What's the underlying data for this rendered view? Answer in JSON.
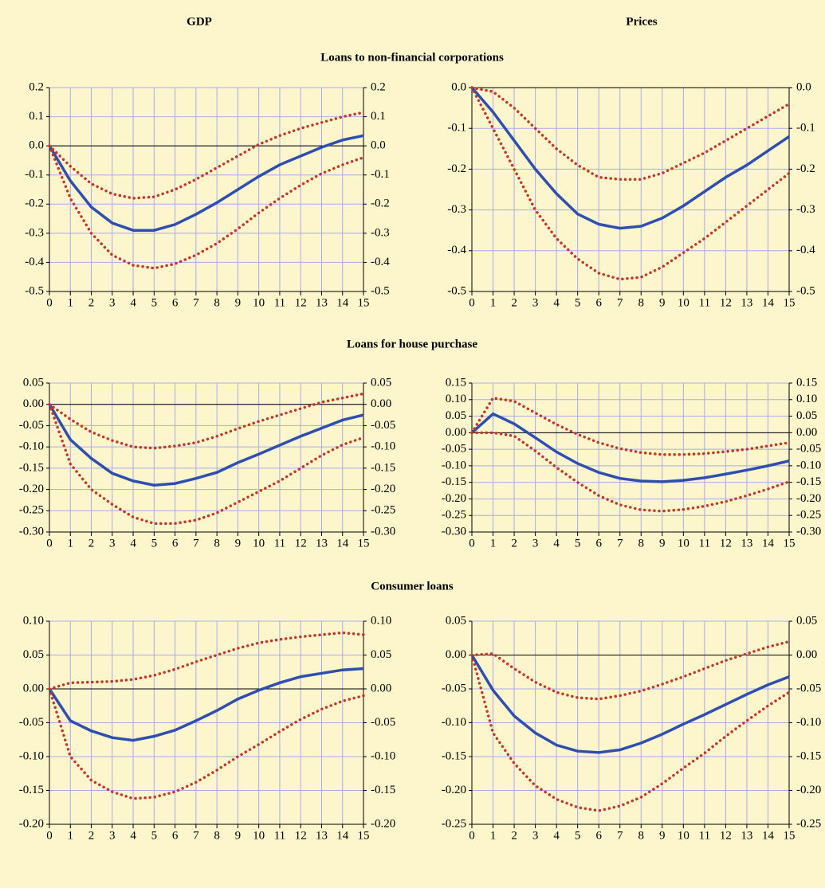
{
  "column_titles": [
    "GDP",
    "Prices"
  ],
  "row_titles": [
    "Loans to non-financial corporations",
    "Loans for house purchase",
    "Consumer loans"
  ],
  "chart_data": [
    {
      "type": "line",
      "x": [
        0,
        1,
        2,
        3,
        4,
        5,
        6,
        7,
        8,
        9,
        10,
        11,
        12,
        13,
        14,
        15
      ],
      "xlim": [
        0,
        15
      ],
      "xticks": [
        0,
        1,
        2,
        3,
        4,
        5,
        6,
        7,
        8,
        9,
        10,
        11,
        12,
        13,
        14,
        15
      ],
      "ylim": [
        -0.5,
        0.2
      ],
      "yticks": [
        -0.5,
        -0.4,
        -0.3,
        -0.2,
        -0.1,
        {
          "value": 0,
          "label": "0.0"
        },
        0.1,
        0.2
      ],
      "grid": true,
      "series": [
        {
          "color": "#2e4fb0",
          "style": "solid",
          "values": [
            0,
            -0.12,
            -0.21,
            -0.265,
            -0.29,
            -0.29,
            -0.27,
            -0.235,
            -0.195,
            -0.15,
            -0.105,
            -0.065,
            -0.035,
            -0.005,
            0.02,
            0.035
          ]
        },
        {
          "color": "#c0392b",
          "style": "dotted",
          "values": [
            0,
            -0.07,
            -0.13,
            -0.165,
            -0.18,
            -0.175,
            -0.15,
            -0.115,
            -0.075,
            -0.035,
            0.005,
            0.035,
            0.06,
            0.08,
            0.1,
            0.115
          ]
        },
        {
          "color": "#c0392b",
          "style": "dotted",
          "values": [
            0,
            -0.18,
            -0.3,
            -0.375,
            -0.41,
            -0.42,
            -0.405,
            -0.375,
            -0.335,
            -0.285,
            -0.23,
            -0.18,
            -0.135,
            -0.095,
            -0.065,
            -0.04
          ]
        }
      ]
    },
    {
      "type": "line",
      "x": [
        0,
        1,
        2,
        3,
        4,
        5,
        6,
        7,
        8,
        9,
        10,
        11,
        12,
        13,
        14,
        15
      ],
      "xlim": [
        0,
        15
      ],
      "xticks": [
        0,
        1,
        2,
        3,
        4,
        5,
        6,
        7,
        8,
        9,
        10,
        11,
        12,
        13,
        14,
        15
      ],
      "ylim": [
        -0.5,
        0
      ],
      "yticks": [
        -0.5,
        -0.4,
        -0.3,
        -0.2,
        -0.1,
        {
          "value": 0,
          "label": "0.0"
        }
      ],
      "grid": true,
      "series": [
        {
          "color": "#2e4fb0",
          "style": "solid",
          "values": [
            0,
            -0.06,
            -0.13,
            -0.2,
            -0.26,
            -0.31,
            -0.335,
            -0.345,
            -0.34,
            -0.32,
            -0.29,
            -0.255,
            -0.22,
            -0.19,
            -0.155,
            -0.12
          ]
        },
        {
          "color": "#c0392b",
          "style": "dotted",
          "values": [
            0,
            -0.01,
            -0.05,
            -0.1,
            -0.15,
            -0.19,
            -0.22,
            -0.225,
            -0.225,
            -0.21,
            -0.185,
            -0.16,
            -0.13,
            -0.1,
            -0.07,
            -0.04
          ]
        },
        {
          "color": "#c0392b",
          "style": "dotted",
          "values": [
            0,
            -0.1,
            -0.2,
            -0.3,
            -0.37,
            -0.42,
            -0.455,
            -0.47,
            -0.465,
            -0.44,
            -0.405,
            -0.37,
            -0.33,
            -0.29,
            -0.25,
            -0.21
          ]
        }
      ]
    },
    {
      "type": "line",
      "x": [
        0,
        1,
        2,
        3,
        4,
        5,
        6,
        7,
        8,
        9,
        10,
        11,
        12,
        13,
        14,
        15
      ],
      "xlim": [
        0,
        15
      ],
      "xticks": [
        0,
        1,
        2,
        3,
        4,
        5,
        6,
        7,
        8,
        9,
        10,
        11,
        12,
        13,
        14,
        15
      ],
      "ylim": [
        -0.3,
        0.05
      ],
      "yticks": [
        {
          "value": -0.3,
          "label": "-0.30"
        },
        -0.25,
        {
          "value": -0.2,
          "label": "-0.20"
        },
        -0.15,
        {
          "value": -0.1,
          "label": "-0.10"
        },
        -0.05,
        {
          "value": 0,
          "label": "0.00"
        },
        0.05
      ],
      "grid": true,
      "series": [
        {
          "color": "#2e4fb0",
          "style": "solid",
          "values": [
            0,
            -0.083,
            -0.127,
            -0.162,
            -0.18,
            -0.19,
            -0.186,
            -0.174,
            -0.16,
            -0.137,
            -0.117,
            -0.096,
            -0.075,
            -0.056,
            -0.037,
            -0.025
          ]
        },
        {
          "color": "#c0392b",
          "style": "dotted",
          "values": [
            0,
            -0.035,
            -0.065,
            -0.085,
            -0.1,
            -0.103,
            -0.098,
            -0.09,
            -0.075,
            -0.057,
            -0.04,
            -0.025,
            -0.01,
            0.005,
            0.015,
            0.025
          ]
        },
        {
          "color": "#c0392b",
          "style": "dotted",
          "values": [
            0,
            -0.14,
            -0.2,
            -0.235,
            -0.265,
            -0.28,
            -0.28,
            -0.272,
            -0.255,
            -0.23,
            -0.205,
            -0.18,
            -0.15,
            -0.12,
            -0.095,
            -0.078
          ]
        }
      ]
    },
    {
      "type": "line",
      "x": [
        0,
        1,
        2,
        3,
        4,
        5,
        6,
        7,
        8,
        9,
        10,
        11,
        12,
        13,
        14,
        15
      ],
      "xlim": [
        0,
        15
      ],
      "xticks": [
        0,
        1,
        2,
        3,
        4,
        5,
        6,
        7,
        8,
        9,
        10,
        11,
        12,
        13,
        14,
        15
      ],
      "ylim": [
        -0.3,
        0.15
      ],
      "yticks": [
        {
          "value": -0.3,
          "label": "-0.30"
        },
        -0.25,
        {
          "value": -0.2,
          "label": "-0.20"
        },
        -0.15,
        {
          "value": -0.1,
          "label": "-0.10"
        },
        -0.05,
        {
          "value": 0,
          "label": "0.00"
        },
        0.05,
        {
          "value": 0.1,
          "label": "0.10"
        },
        0.15
      ],
      "grid": true,
      "series": [
        {
          "color": "#2e4fb0",
          "style": "solid",
          "values": [
            0,
            0.057,
            0.027,
            -0.015,
            -0.058,
            -0.093,
            -0.12,
            -0.138,
            -0.146,
            -0.148,
            -0.144,
            -0.136,
            -0.125,
            -0.113,
            -0.1,
            -0.085
          ]
        },
        {
          "color": "#c0392b",
          "style": "dotted",
          "values": [
            0,
            0.105,
            0.095,
            0.06,
            0.025,
            -0.005,
            -0.03,
            -0.048,
            -0.06,
            -0.066,
            -0.066,
            -0.063,
            -0.057,
            -0.05,
            -0.04,
            -0.03
          ]
        },
        {
          "color": "#c0392b",
          "style": "dotted",
          "values": [
            0,
            0,
            -0.01,
            -0.055,
            -0.105,
            -0.15,
            -0.19,
            -0.218,
            -0.233,
            -0.237,
            -0.232,
            -0.222,
            -0.208,
            -0.19,
            -0.17,
            -0.148
          ]
        }
      ]
    },
    {
      "type": "line",
      "x": [
        0,
        1,
        2,
        3,
        4,
        5,
        6,
        7,
        8,
        9,
        10,
        11,
        12,
        13,
        14,
        15
      ],
      "xlim": [
        0,
        15
      ],
      "xticks": [
        0,
        1,
        2,
        3,
        4,
        5,
        6,
        7,
        8,
        9,
        10,
        11,
        12,
        13,
        14,
        15
      ],
      "ylim": [
        -0.2,
        0.1
      ],
      "yticks": [
        {
          "value": -0.2,
          "label": "-0.20"
        },
        -0.15,
        {
          "value": -0.1,
          "label": "-0.10"
        },
        -0.05,
        {
          "value": 0,
          "label": "0.00"
        },
        0.05,
        {
          "value": 0.1,
          "label": "0.10"
        }
      ],
      "grid": true,
      "series": [
        {
          "color": "#2e4fb0",
          "style": "solid",
          "values": [
            0,
            -0.047,
            -0.062,
            -0.072,
            -0.076,
            -0.07,
            -0.061,
            -0.047,
            -0.032,
            -0.015,
            -0.002,
            0.009,
            0.018,
            0.023,
            0.028,
            0.03
          ]
        },
        {
          "color": "#c0392b",
          "style": "dotted",
          "values": [
            0,
            0.009,
            0.01,
            0.011,
            0.014,
            0.02,
            0.029,
            0.04,
            0.05,
            0.06,
            0.068,
            0.073,
            0.077,
            0.08,
            0.083,
            0.08
          ]
        },
        {
          "color": "#c0392b",
          "style": "dotted",
          "values": [
            0,
            -0.1,
            -0.135,
            -0.152,
            -0.162,
            -0.16,
            -0.152,
            -0.138,
            -0.12,
            -0.1,
            -0.082,
            -0.063,
            -0.045,
            -0.03,
            -0.018,
            -0.01
          ]
        }
      ]
    },
    {
      "type": "line",
      "x": [
        0,
        1,
        2,
        3,
        4,
        5,
        6,
        7,
        8,
        9,
        10,
        11,
        12,
        13,
        14,
        15
      ],
      "xlim": [
        0,
        15
      ],
      "xticks": [
        0,
        1,
        2,
        3,
        4,
        5,
        6,
        7,
        8,
        9,
        10,
        11,
        12,
        13,
        14,
        15
      ],
      "ylim": [
        -0.25,
        0.05
      ],
      "yticks": [
        -0.25,
        {
          "value": -0.2,
          "label": "-0.20"
        },
        -0.15,
        {
          "value": -0.1,
          "label": "-0.10"
        },
        -0.05,
        {
          "value": 0,
          "label": "0.00"
        },
        0.05
      ],
      "grid": true,
      "series": [
        {
          "color": "#2e4fb0",
          "style": "solid",
          "values": [
            0,
            -0.052,
            -0.09,
            -0.115,
            -0.133,
            -0.142,
            -0.144,
            -0.14,
            -0.13,
            -0.117,
            -0.102,
            -0.088,
            -0.073,
            -0.058,
            -0.044,
            -0.032
          ]
        },
        {
          "color": "#c0392b",
          "style": "dotted",
          "values": [
            0,
            0.002,
            -0.02,
            -0.04,
            -0.055,
            -0.063,
            -0.065,
            -0.06,
            -0.053,
            -0.043,
            -0.032,
            -0.02,
            -0.008,
            0.002,
            0.012,
            0.02
          ]
        },
        {
          "color": "#c0392b",
          "style": "dotted",
          "values": [
            0,
            -0.115,
            -0.16,
            -0.193,
            -0.213,
            -0.225,
            -0.23,
            -0.223,
            -0.21,
            -0.19,
            -0.167,
            -0.145,
            -0.12,
            -0.097,
            -0.075,
            -0.055
          ]
        }
      ]
    }
  ]
}
